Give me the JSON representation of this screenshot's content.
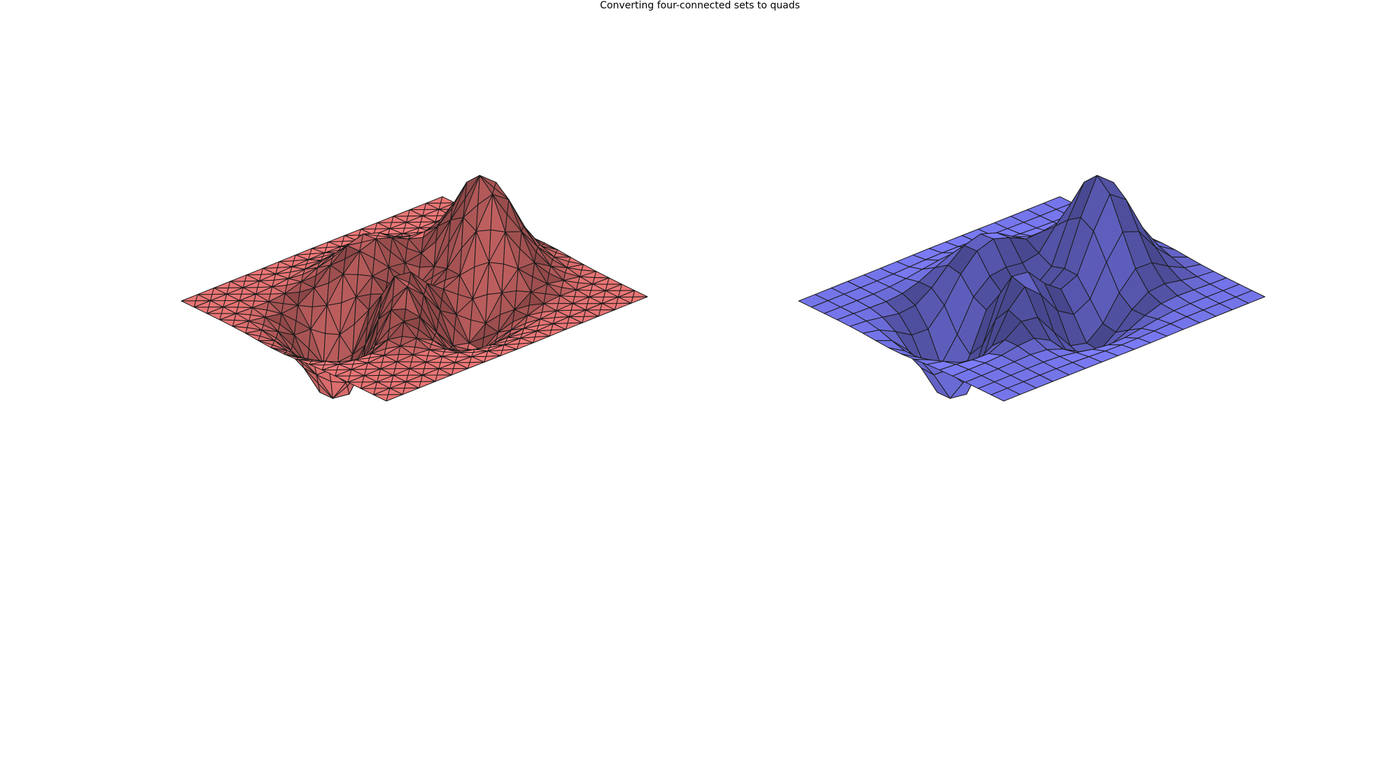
{
  "figure": {
    "title": "Converting four-connected sets to quads"
  },
  "surface": {
    "function": "peaks",
    "grid_samples": 17,
    "colors": {
      "background": "#ffffff",
      "edge": "#1a1a1a"
    }
  },
  "plots": [
    {
      "name": "triangle-mesh",
      "mesh": "triangles",
      "face_color": "#ff7f7f"
    },
    {
      "name": "quad-mesh",
      "mesh": "quads",
      "face_color": "#7f7fff"
    }
  ]
}
